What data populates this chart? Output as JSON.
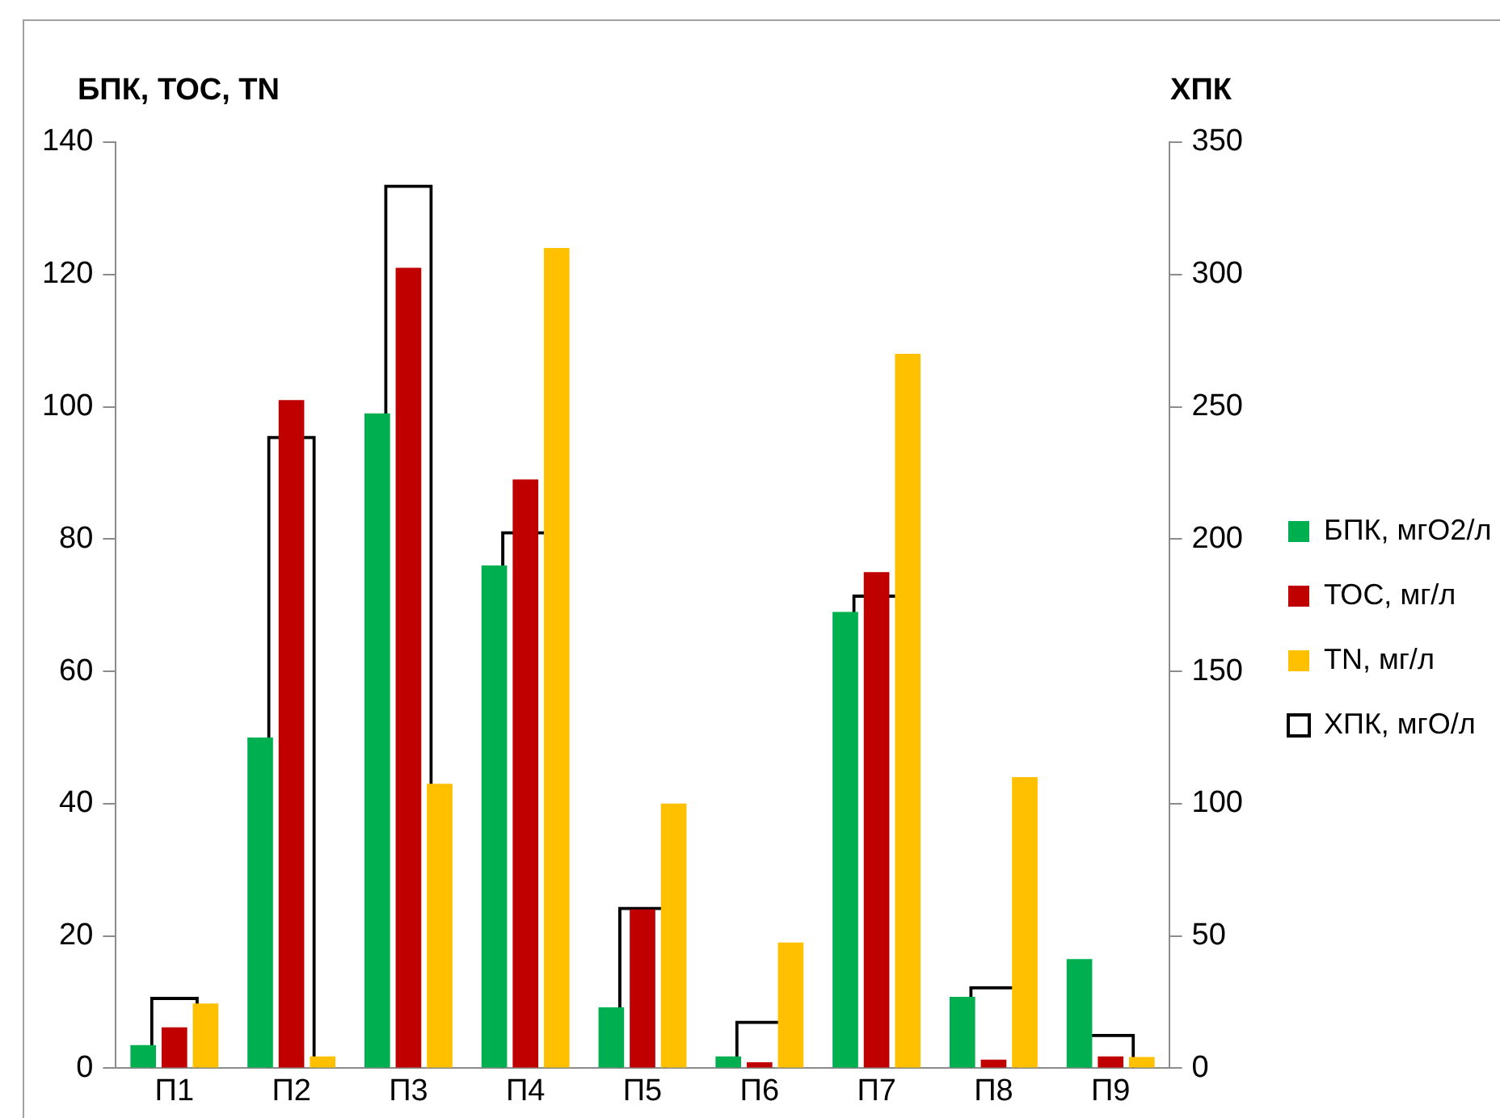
{
  "chart_data": {
    "type": "bar",
    "ylabel": "БПК, ТОС, TN",
    "y2label": "ХПК",
    "categories": [
      "П1",
      "П2",
      "П3",
      "П4",
      "П5",
      "П6",
      "П7",
      "П8",
      "П9"
    ],
    "series": [
      {
        "name": "БПК, мгО2/л",
        "color": "#00b050",
        "values": [
          3.5,
          50,
          99,
          76,
          9.2,
          1.8,
          69,
          10.8,
          16.5
        ]
      },
      {
        "name": "ТОС, мг/л",
        "color": "#c00000",
        "values": [
          6.2,
          101,
          121,
          89,
          24,
          0.9,
          75,
          1.3,
          1.8
        ]
      },
      {
        "name": "TN, мг/л",
        "color": "#ffc000",
        "values": [
          9.8,
          1.8,
          43,
          124,
          40,
          19,
          108,
          44,
          1.7
        ]
      },
      {
        "name": "ХПК, мгО/л",
        "color": "#000000",
        "axis": "y2",
        "values": [
          27,
          239,
          334,
          203,
          61,
          18,
          179,
          31,
          13
        ]
      }
    ],
    "ylim": [
      0,
      140
    ],
    "yticks": [
      0,
      20,
      40,
      60,
      80,
      100,
      120,
      140
    ],
    "y2lim": [
      0,
      350
    ],
    "y2ticks": [
      0,
      50,
      100,
      150,
      200,
      250,
      300,
      350
    ],
    "grid": false,
    "legend": "right"
  }
}
